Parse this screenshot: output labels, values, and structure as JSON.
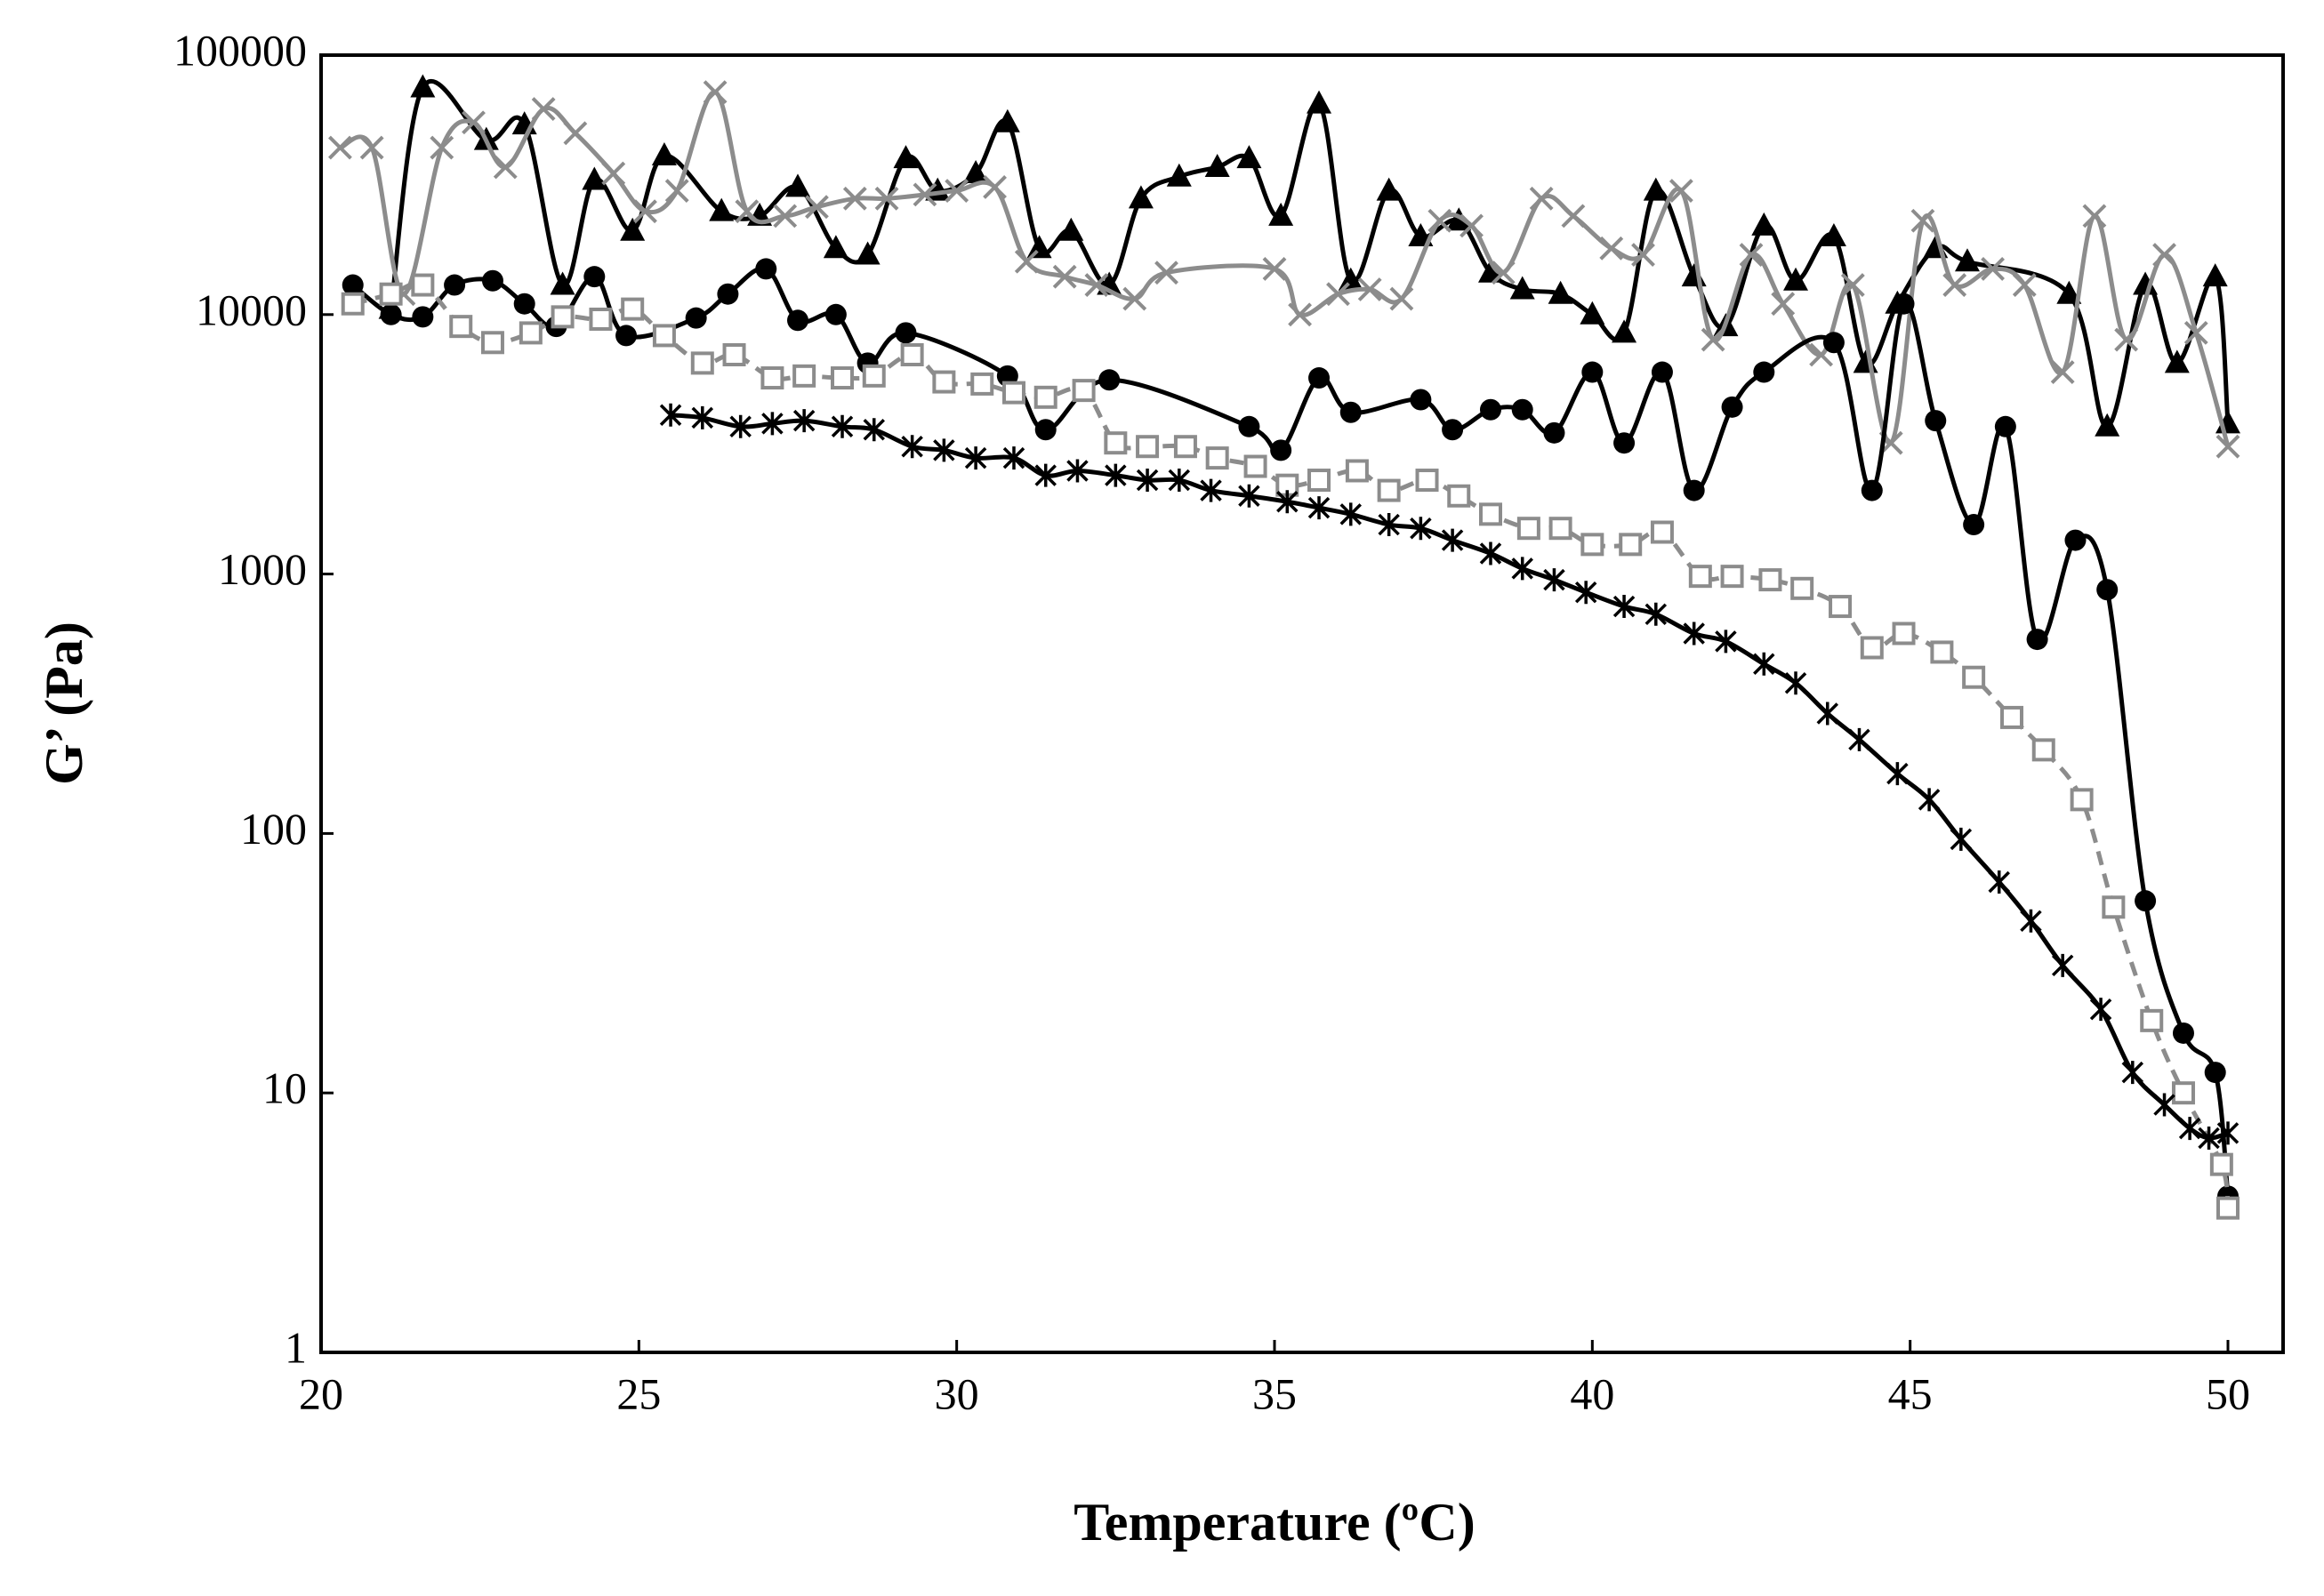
{
  "chart_data": {
    "type": "line",
    "x_label": "Temperature (ºC)",
    "y_label": "G’ (Pa)",
    "xlim": [
      20,
      50
    ],
    "xticks": [
      20,
      25,
      30,
      35,
      40,
      45,
      50
    ],
    "ylim": [
      1,
      100000
    ],
    "yticks": [
      1,
      10,
      100,
      1000,
      10000,
      100000
    ],
    "log_y": true,
    "grid": false,
    "series": [
      {
        "color": "#000000",
        "marker": "triangle",
        "dashed": false,
        "x": [
          21.1,
          21.6,
          22.6,
          23.2,
          23.8,
          24.3,
          24.9,
          25.4,
          26.3,
          26.9,
          27.5,
          28.1,
          28.6,
          29.2,
          29.7,
          30.3,
          30.8,
          31.3,
          31.8,
          32.4,
          32.9,
          33.5,
          34.1,
          34.6,
          35.1,
          35.7,
          36.2,
          36.8,
          37.3,
          37.9,
          38.4,
          38.9,
          39.5,
          40.0,
          40.5,
          41.0,
          41.6,
          42.1,
          42.7,
          43.2,
          43.8,
          44.3,
          44.8,
          45.4,
          45.9,
          47.5,
          48.1,
          48.7,
          49.2,
          49.8,
          50.0
        ],
        "values": [
          10500,
          75000,
          47000,
          54000,
          13000,
          33000,
          21000,
          41000,
          25000,
          24000,
          31000,
          18000,
          17000,
          40000,
          30000,
          35000,
          55000,
          18000,
          21000,
          13000,
          28000,
          34000,
          37000,
          40000,
          24000,
          65000,
          13500,
          30000,
          20000,
          23000,
          14500,
          12500,
          12000,
          10000,
          8500,
          30000,
          14000,
          9000,
          22000,
          13500,
          20000,
          6500,
          11000,
          18000,
          16000,
          12000,
          3700,
          13000,
          6500,
          14000,
          3800
        ]
      },
      {
        "color": "#8c8c8c",
        "marker": "cross",
        "dashed": false,
        "x": [
          20.3,
          20.8,
          21.3,
          21.9,
          22.4,
          22.9,
          23.5,
          24.0,
          24.6,
          25.1,
          25.6,
          26.2,
          26.7,
          27.3,
          27.8,
          28.4,
          28.9,
          29.5,
          30.0,
          30.6,
          31.1,
          31.7,
          32.2,
          32.8,
          33.3,
          35.0,
          35.4,
          36.0,
          36.5,
          37.0,
          37.6,
          38.1,
          38.6,
          39.2,
          39.7,
          40.3,
          40.8,
          41.4,
          41.9,
          42.5,
          43.0,
          43.6,
          44.1,
          44.7,
          45.2,
          45.7,
          46.3,
          46.8,
          47.4,
          47.9,
          48.4,
          49.0,
          49.5,
          50.0
        ],
        "values": [
          44000,
          44000,
          12000,
          44000,
          55000,
          37000,
          62000,
          50000,
          35000,
          25000,
          30000,
          72000,
          25000,
          24000,
          26000,
          28000,
          28000,
          29000,
          30000,
          31000,
          16000,
          14000,
          13000,
          11500,
          14500,
          15000,
          10000,
          12000,
          12500,
          11500,
          23000,
          22000,
          14500,
          28000,
          24000,
          18000,
          17000,
          30000,
          8000,
          17000,
          11000,
          7000,
          13000,
          3200,
          23000,
          13000,
          15000,
          13000,
          6000,
          24000,
          8000,
          17000,
          8500,
          3100
        ]
      },
      {
        "color": "#000000",
        "marker": "circle",
        "dashed": false,
        "x": [
          20.5,
          21.1,
          21.6,
          22.1,
          22.7,
          23.2,
          23.7,
          24.3,
          24.8,
          25.9,
          26.4,
          27.0,
          27.5,
          28.1,
          28.6,
          29.2,
          30.8,
          31.4,
          32.4,
          34.6,
          35.1,
          35.7,
          36.2,
          37.3,
          37.8,
          38.4,
          38.9,
          39.4,
          40.0,
          40.5,
          41.1,
          41.6,
          42.2,
          42.7,
          43.8,
          44.4,
          44.9,
          45.4,
          46.0,
          46.5,
          47.0,
          47.6,
          48.1,
          48.7,
          49.3,
          49.8,
          50.0
        ],
        "values": [
          13000,
          10000,
          9800,
          13000,
          13500,
          11000,
          9000,
          14000,
          8300,
          9700,
          12000,
          15000,
          9500,
          10000,
          6500,
          8500,
          5800,
          3600,
          5600,
          3700,
          3000,
          5700,
          4200,
          4700,
          3600,
          4300,
          4300,
          3500,
          6000,
          3200,
          6000,
          2100,
          4400,
          6000,
          7800,
          2100,
          11000,
          3900,
          1550,
          3700,
          560,
          1350,
          870,
          55,
          17,
          12,
          4
        ]
      },
      {
        "color": "#8c8c8c",
        "marker": "square",
        "dashed": true,
        "x": [
          20.5,
          21.1,
          21.6,
          22.2,
          22.7,
          23.3,
          23.8,
          24.4,
          24.9,
          25.4,
          26.0,
          26.5,
          27.1,
          27.6,
          28.2,
          28.7,
          29.3,
          29.8,
          30.4,
          30.9,
          31.4,
          32.0,
          32.5,
          33.0,
          33.6,
          34.1,
          34.7,
          35.2,
          35.7,
          36.3,
          36.8,
          37.4,
          37.9,
          38.4,
          39.0,
          39.5,
          40.0,
          40.6,
          41.1,
          41.7,
          42.2,
          42.8,
          43.3,
          43.9,
          44.4,
          44.9,
          45.5,
          46.0,
          46.6,
          47.1,
          47.7,
          48.2,
          48.8,
          49.3,
          49.9,
          50.0
        ],
        "values": [
          11000,
          12000,
          13000,
          9000,
          7800,
          8500,
          9800,
          9600,
          10500,
          8300,
          6500,
          7000,
          5700,
          5800,
          5700,
          5800,
          7000,
          5500,
          5400,
          5000,
          4800,
          5100,
          3200,
          3100,
          3100,
          2800,
          2600,
          2200,
          2300,
          2500,
          2100,
          2300,
          2000,
          1700,
          1500,
          1500,
          1300,
          1300,
          1450,
          980,
          980,
          950,
          880,
          750,
          520,
          590,
          500,
          400,
          280,
          210,
          135,
          52,
          19,
          10,
          5.3,
          3.6
        ]
      },
      {
        "color": "#000000",
        "marker": "asterisk",
        "dashed": false,
        "x": [
          25.5,
          26.0,
          26.6,
          27.1,
          27.6,
          28.2,
          28.7,
          29.3,
          29.8,
          30.3,
          30.9,
          31.4,
          31.9,
          32.5,
          33.0,
          33.5,
          34.0,
          34.6,
          35.2,
          35.7,
          36.2,
          36.8,
          37.3,
          37.8,
          38.4,
          38.9,
          39.4,
          39.9,
          40.5,
          41.0,
          41.6,
          42.1,
          42.7,
          43.2,
          43.7,
          44.2,
          44.8,
          45.3,
          45.8,
          46.4,
          46.9,
          47.4,
          48.0,
          48.5,
          49.0,
          49.4,
          49.7,
          50.0
        ],
        "values": [
          4100,
          4000,
          3700,
          3800,
          3900,
          3700,
          3600,
          3100,
          3000,
          2800,
          2800,
          2400,
          2500,
          2400,
          2300,
          2300,
          2100,
          2000,
          1900,
          1800,
          1700,
          1550,
          1500,
          1350,
          1200,
          1050,
          950,
          850,
          750,
          700,
          590,
          550,
          450,
          380,
          290,
          230,
          170,
          135,
          95,
          65,
          46,
          31,
          21,
          12,
          9,
          7.3,
          6.7,
          7
        ]
      }
    ]
  }
}
